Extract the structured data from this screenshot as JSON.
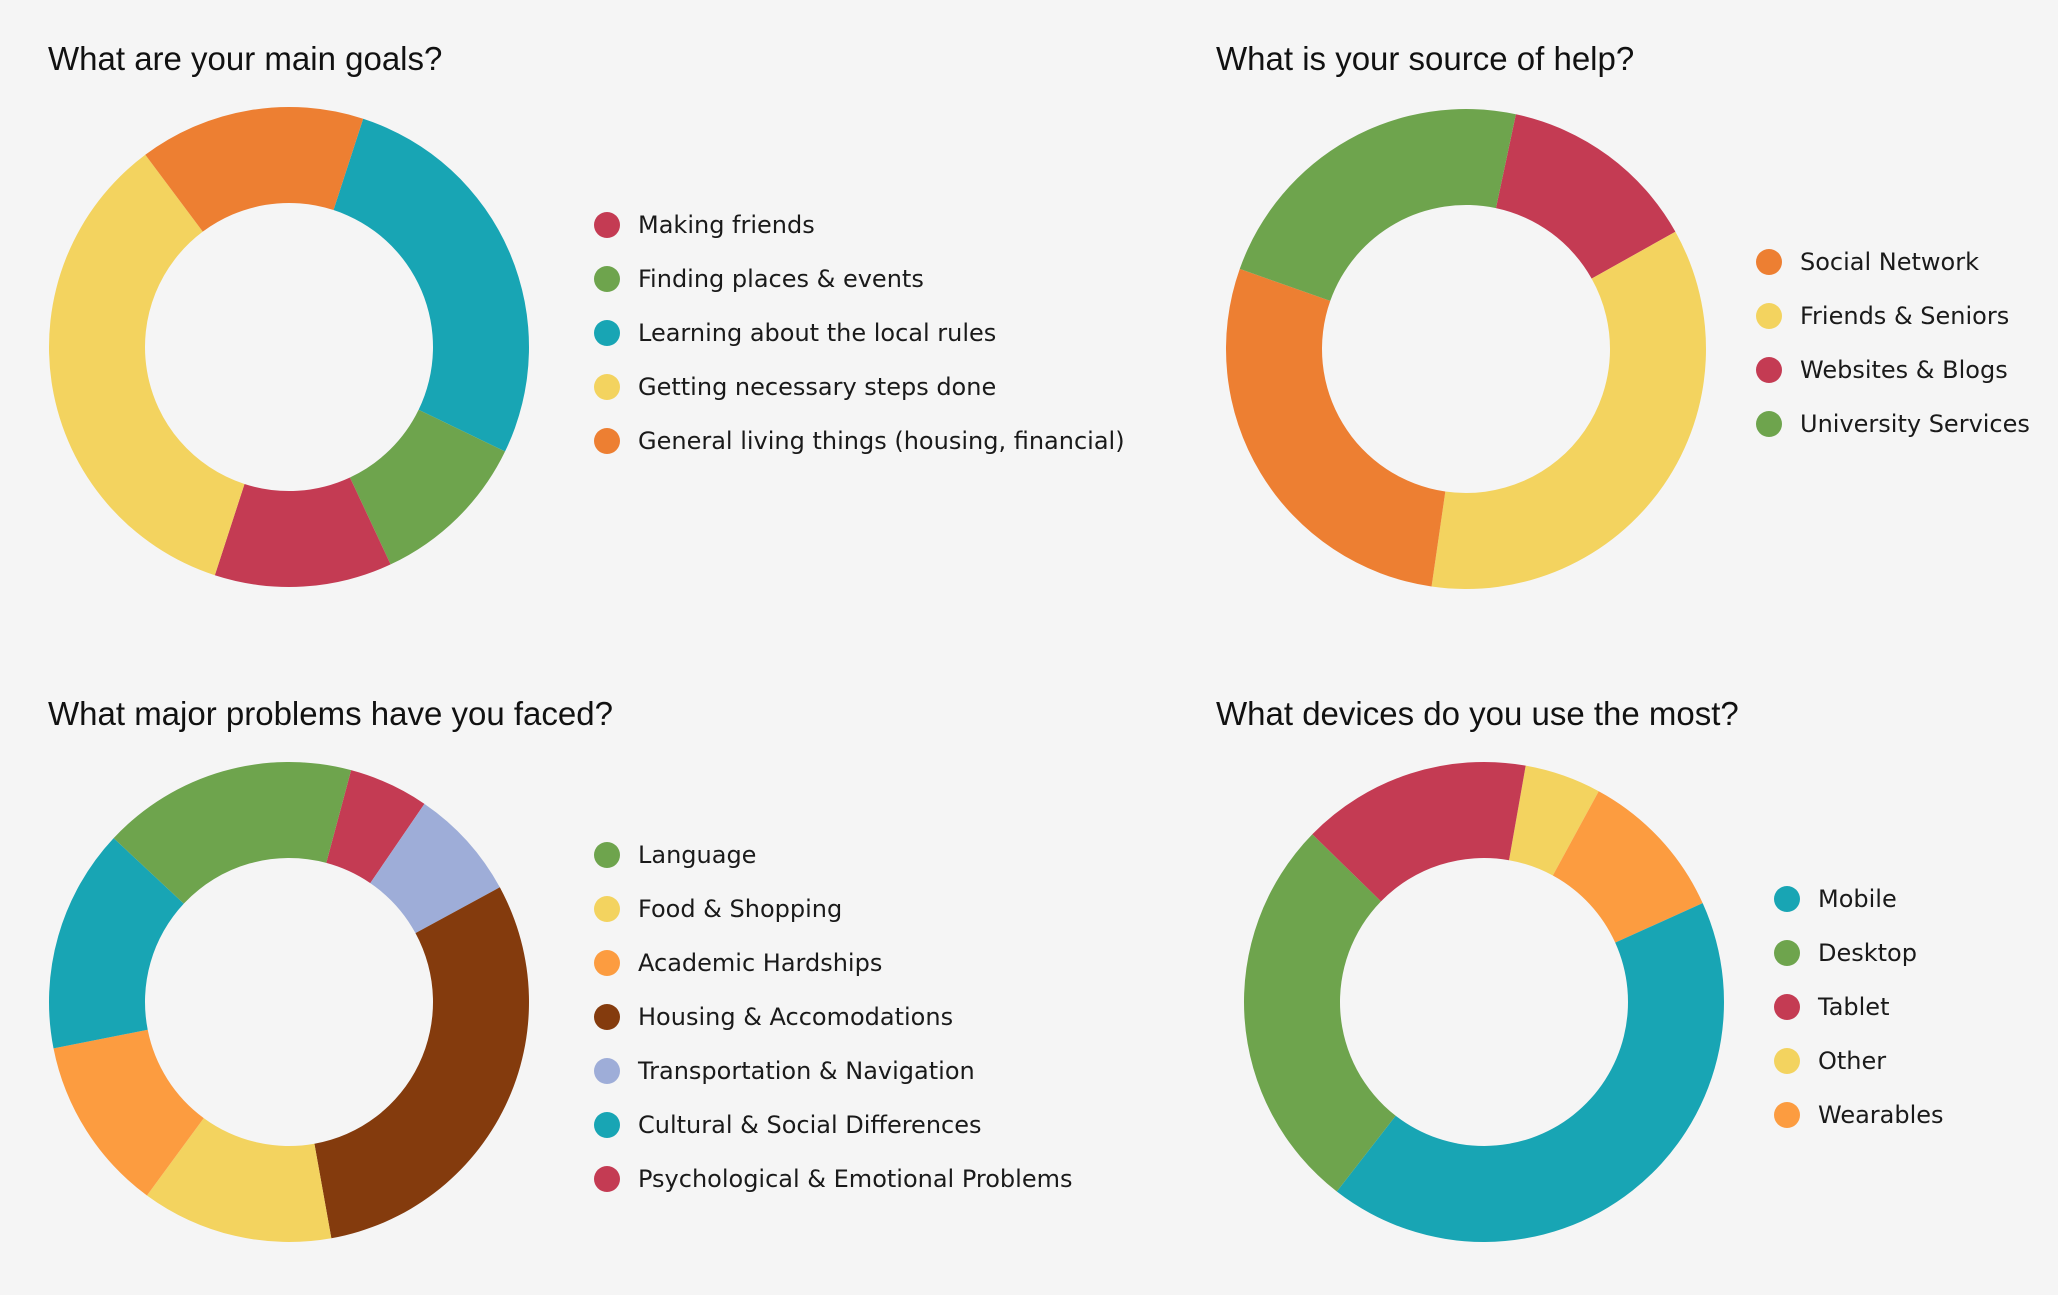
{
  "chart_data": [
    {
      "type": "pie",
      "title": "What are your main goals?",
      "categories": [
        "Making friends",
        "Finding places & events",
        "Learning about the local rules",
        "Getting necessary steps done",
        "General living things (housing, financial)"
      ],
      "series": [
        {
          "values": [
            11,
            10,
            25,
            32,
            14
          ]
        }
      ],
      "colors": [
        "#c43b53",
        "#6ea44d",
        "#18a5b4",
        "#f3d35f",
        "#ed7f32"
      ],
      "chart_order": [
        2,
        1,
        0,
        3,
        4
      ],
      "start_angle_deg": 18,
      "legend_position": "right"
    },
    {
      "type": "pie",
      "title": "What is your source of help?",
      "categories": [
        "Social Network",
        "Friends & Seniors",
        "Websites & Blogs",
        "University Services"
      ],
      "series": [
        {
          "values": [
            27,
            34,
            13,
            22
          ]
        }
      ],
      "colors": [
        "#ed7f32",
        "#f3d35f",
        "#c43b53",
        "#6ea44d"
      ],
      "chart_order": [
        2,
        1,
        0,
        3
      ],
      "start_angle_deg": 12,
      "legend_position": "right"
    },
    {
      "type": "pie",
      "title": "What major problems have you faced?",
      "categories": [
        "Language",
        "Food & Shopping",
        "Academic Hardships",
        "Housing & Accomodations",
        "Transportation & Navigation",
        "Cultural & Social Differences",
        "Psychological & Emotional Problems"
      ],
      "series": [
        {
          "values": [
            16,
            12,
            11,
            28,
            7,
            14,
            5
          ]
        }
      ],
      "colors": [
        "#6ea44d",
        "#f3d35f",
        "#fc9c40",
        "#843b0d",
        "#9eadd8",
        "#18a5b4",
        "#c43b53"
      ],
      "chart_order": [
        6,
        4,
        3,
        1,
        2,
        5,
        0
      ],
      "start_angle_deg": 15,
      "legend_position": "right"
    },
    {
      "type": "pie",
      "title": "What devices do you use the most?",
      "categories": [
        "Mobile",
        "Desktop",
        "Tablet",
        "Other",
        "Wearables"
      ],
      "series": [
        {
          "values": [
            41,
            26,
            15,
            5,
            10
          ]
        }
      ],
      "colors": [
        "#18a5b4",
        "#6ea44d",
        "#c43b53",
        "#f3d35f",
        "#fc9c40"
      ],
      "chart_order": [
        3,
        4,
        0,
        1,
        2
      ],
      "start_angle_deg": 10,
      "legend_position": "right"
    }
  ]
}
